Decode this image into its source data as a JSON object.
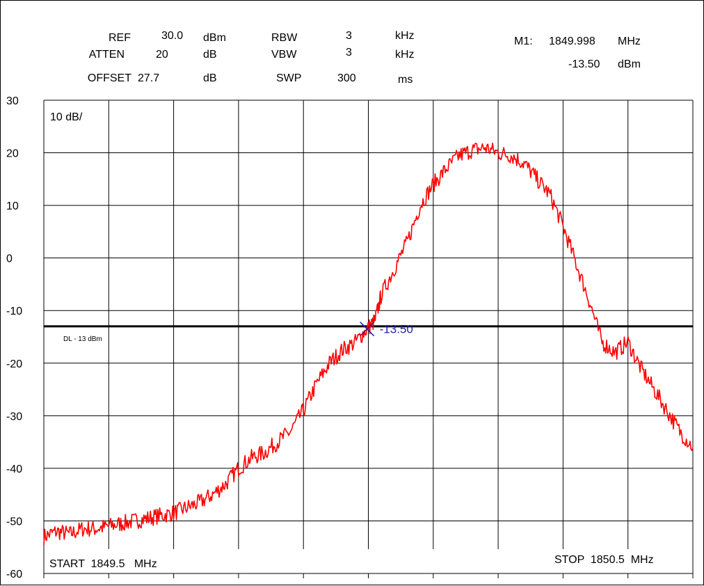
{
  "header": {
    "ref_label": "REF",
    "ref_value": "30.0",
    "ref_unit": "dBm",
    "atten_label": "ATTEN",
    "atten_value": "20",
    "atten_unit": "dB",
    "offset_label": "OFFSET",
    "offset_value": "27.7",
    "offset_unit": "dB",
    "rbw_label": "RBW",
    "rbw_value": "3",
    "rbw_unit": "kHz",
    "vbw_label": "VBW",
    "vbw_value": "3",
    "vbw_unit": "kHz",
    "swp_label": "SWP",
    "swp_value": "300",
    "swp_unit": "ms",
    "marker_label": "M1:",
    "marker_freq": "1849.998",
    "marker_freq_unit": "MHz",
    "marker_level": "-13.50",
    "marker_level_unit": "dBm"
  },
  "annotations": {
    "scale": "10 dB/",
    "display_line": "DL - 13 dBm",
    "marker_readout": "-13.50",
    "start": "START  1849.5   MHz",
    "stop": "STOP  1850.5  MHz"
  },
  "colors": {
    "trace": "#ff0000",
    "marker": "#1f1fa8",
    "grid": "#000000",
    "display_line": "#000000"
  },
  "chart_data": {
    "type": "line",
    "xlabel": "",
    "ylabel": "",
    "xlim": [
      1849.5,
      1850.5
    ],
    "ylim": [
      -60,
      30
    ],
    "y_ticks": [
      30,
      20,
      10,
      0,
      -10,
      -20,
      -30,
      -40,
      -50,
      -60
    ],
    "x_divisions": 10,
    "grid": true,
    "display_line_dbm": -13,
    "marker": {
      "x": 1849.998,
      "y": -13.5
    },
    "series": [
      {
        "x": [
          1849.5,
          1849.52,
          1849.54,
          1849.56,
          1849.58,
          1849.6,
          1849.62,
          1849.64,
          1849.66,
          1849.68,
          1849.7,
          1849.72,
          1849.74,
          1849.76,
          1849.78,
          1849.8,
          1849.82,
          1849.84,
          1849.86,
          1849.88,
          1849.9,
          1849.92,
          1849.94,
          1849.96,
          1849.98,
          1849.998,
          1850.01,
          1850.02,
          1850.04,
          1850.06,
          1850.08,
          1850.1,
          1850.12,
          1850.14,
          1850.16,
          1850.18,
          1850.2,
          1850.22,
          1850.24,
          1850.26,
          1850.28,
          1850.3,
          1850.32,
          1850.34,
          1850.36,
          1850.38,
          1850.4,
          1850.42,
          1850.44,
          1850.46,
          1850.48,
          1850.5
        ],
        "values": [
          -53,
          -52,
          -52.5,
          -51.5,
          -51.5,
          -51,
          -50.5,
          -50,
          -49.5,
          -49,
          -48.5,
          -47.5,
          -46.5,
          -45,
          -43,
          -40,
          -38,
          -37,
          -35,
          -33,
          -29,
          -24,
          -20,
          -17.5,
          -16,
          -13.5,
          -12,
          -7,
          -2,
          3,
          10,
          14,
          17,
          19.5,
          20.5,
          21,
          20,
          19.5,
          18,
          15,
          12,
          6,
          -1,
          -8,
          -16,
          -18,
          -16,
          -21,
          -25,
          -29,
          -33,
          -36
        ]
      }
    ]
  }
}
